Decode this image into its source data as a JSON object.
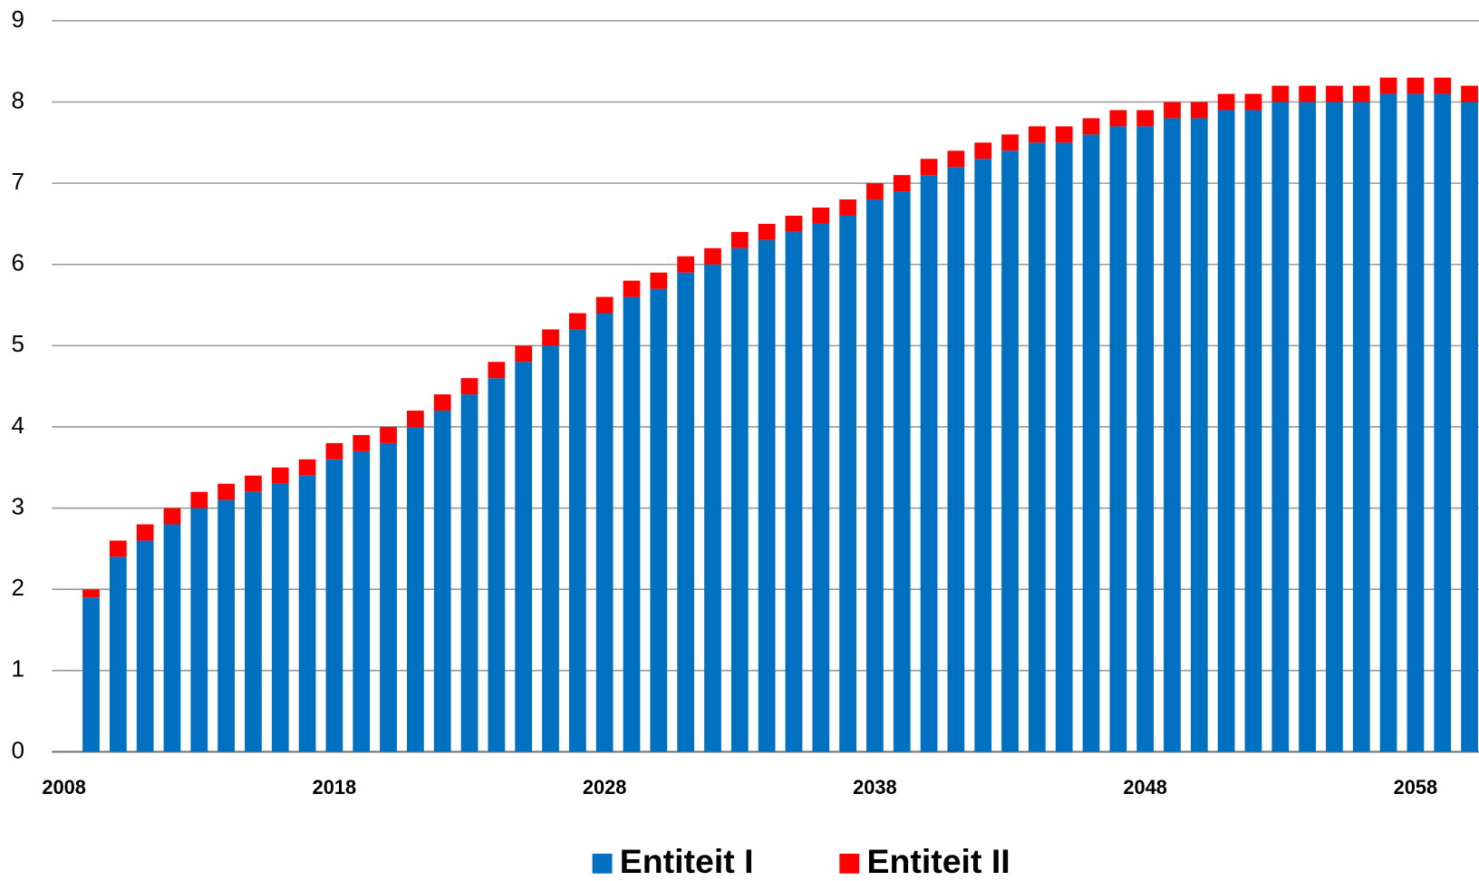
{
  "chart_data": {
    "type": "stacked-bar",
    "x": [
      2009,
      2010,
      2011,
      2012,
      2013,
      2014,
      2015,
      2016,
      2017,
      2018,
      2019,
      2020,
      2021,
      2022,
      2023,
      2024,
      2025,
      2026,
      2027,
      2028,
      2029,
      2030,
      2031,
      2032,
      2033,
      2034,
      2035,
      2036,
      2037,
      2038,
      2039,
      2040,
      2041,
      2042,
      2043,
      2044,
      2045,
      2046,
      2047,
      2048,
      2049,
      2050,
      2051,
      2052,
      2053,
      2054,
      2055,
      2056,
      2057,
      2058,
      2059,
      2060
    ],
    "series": [
      {
        "name": "Entiteit I",
        "color": "#0070c0",
        "values": [
          1.9,
          2.4,
          2.6,
          2.8,
          3.0,
          3.1,
          3.2,
          3.3,
          3.4,
          3.6,
          3.7,
          3.8,
          4.0,
          4.2,
          4.4,
          4.6,
          4.8,
          5.0,
          5.2,
          5.4,
          5.6,
          5.7,
          5.9,
          6.0,
          6.2,
          6.3,
          6.4,
          6.5,
          6.6,
          6.8,
          6.9,
          7.1,
          7.2,
          7.3,
          7.4,
          7.5,
          7.5,
          7.6,
          7.7,
          7.7,
          7.8,
          7.8,
          7.9,
          7.9,
          8.0,
          8.0,
          8.0,
          8.0,
          8.1,
          8.1,
          8.1,
          8.0
        ]
      },
      {
        "name": "Entiteit II",
        "color": "#ff0000",
        "values": [
          0.1,
          0.2,
          0.2,
          0.2,
          0.2,
          0.2,
          0.2,
          0.2,
          0.2,
          0.2,
          0.2,
          0.2,
          0.2,
          0.2,
          0.2,
          0.2,
          0.2,
          0.2,
          0.2,
          0.2,
          0.2,
          0.2,
          0.2,
          0.2,
          0.2,
          0.2,
          0.2,
          0.2,
          0.2,
          0.2,
          0.2,
          0.2,
          0.2,
          0.2,
          0.2,
          0.2,
          0.2,
          0.2,
          0.2,
          0.2,
          0.2,
          0.2,
          0.2,
          0.2,
          0.2,
          0.2,
          0.2,
          0.2,
          0.2,
          0.2,
          0.2,
          0.2
        ]
      }
    ],
    "xlim": [
      2007.55,
      2060.35
    ],
    "xticks": [
      2008,
      2018,
      2028,
      2038,
      2048,
      2058
    ],
    "ylim": [
      0,
      9
    ],
    "yticks": [
      0,
      1,
      2,
      3,
      4,
      5,
      6,
      7,
      8,
      9
    ],
    "grid": true,
    "legend": "bottom"
  }
}
